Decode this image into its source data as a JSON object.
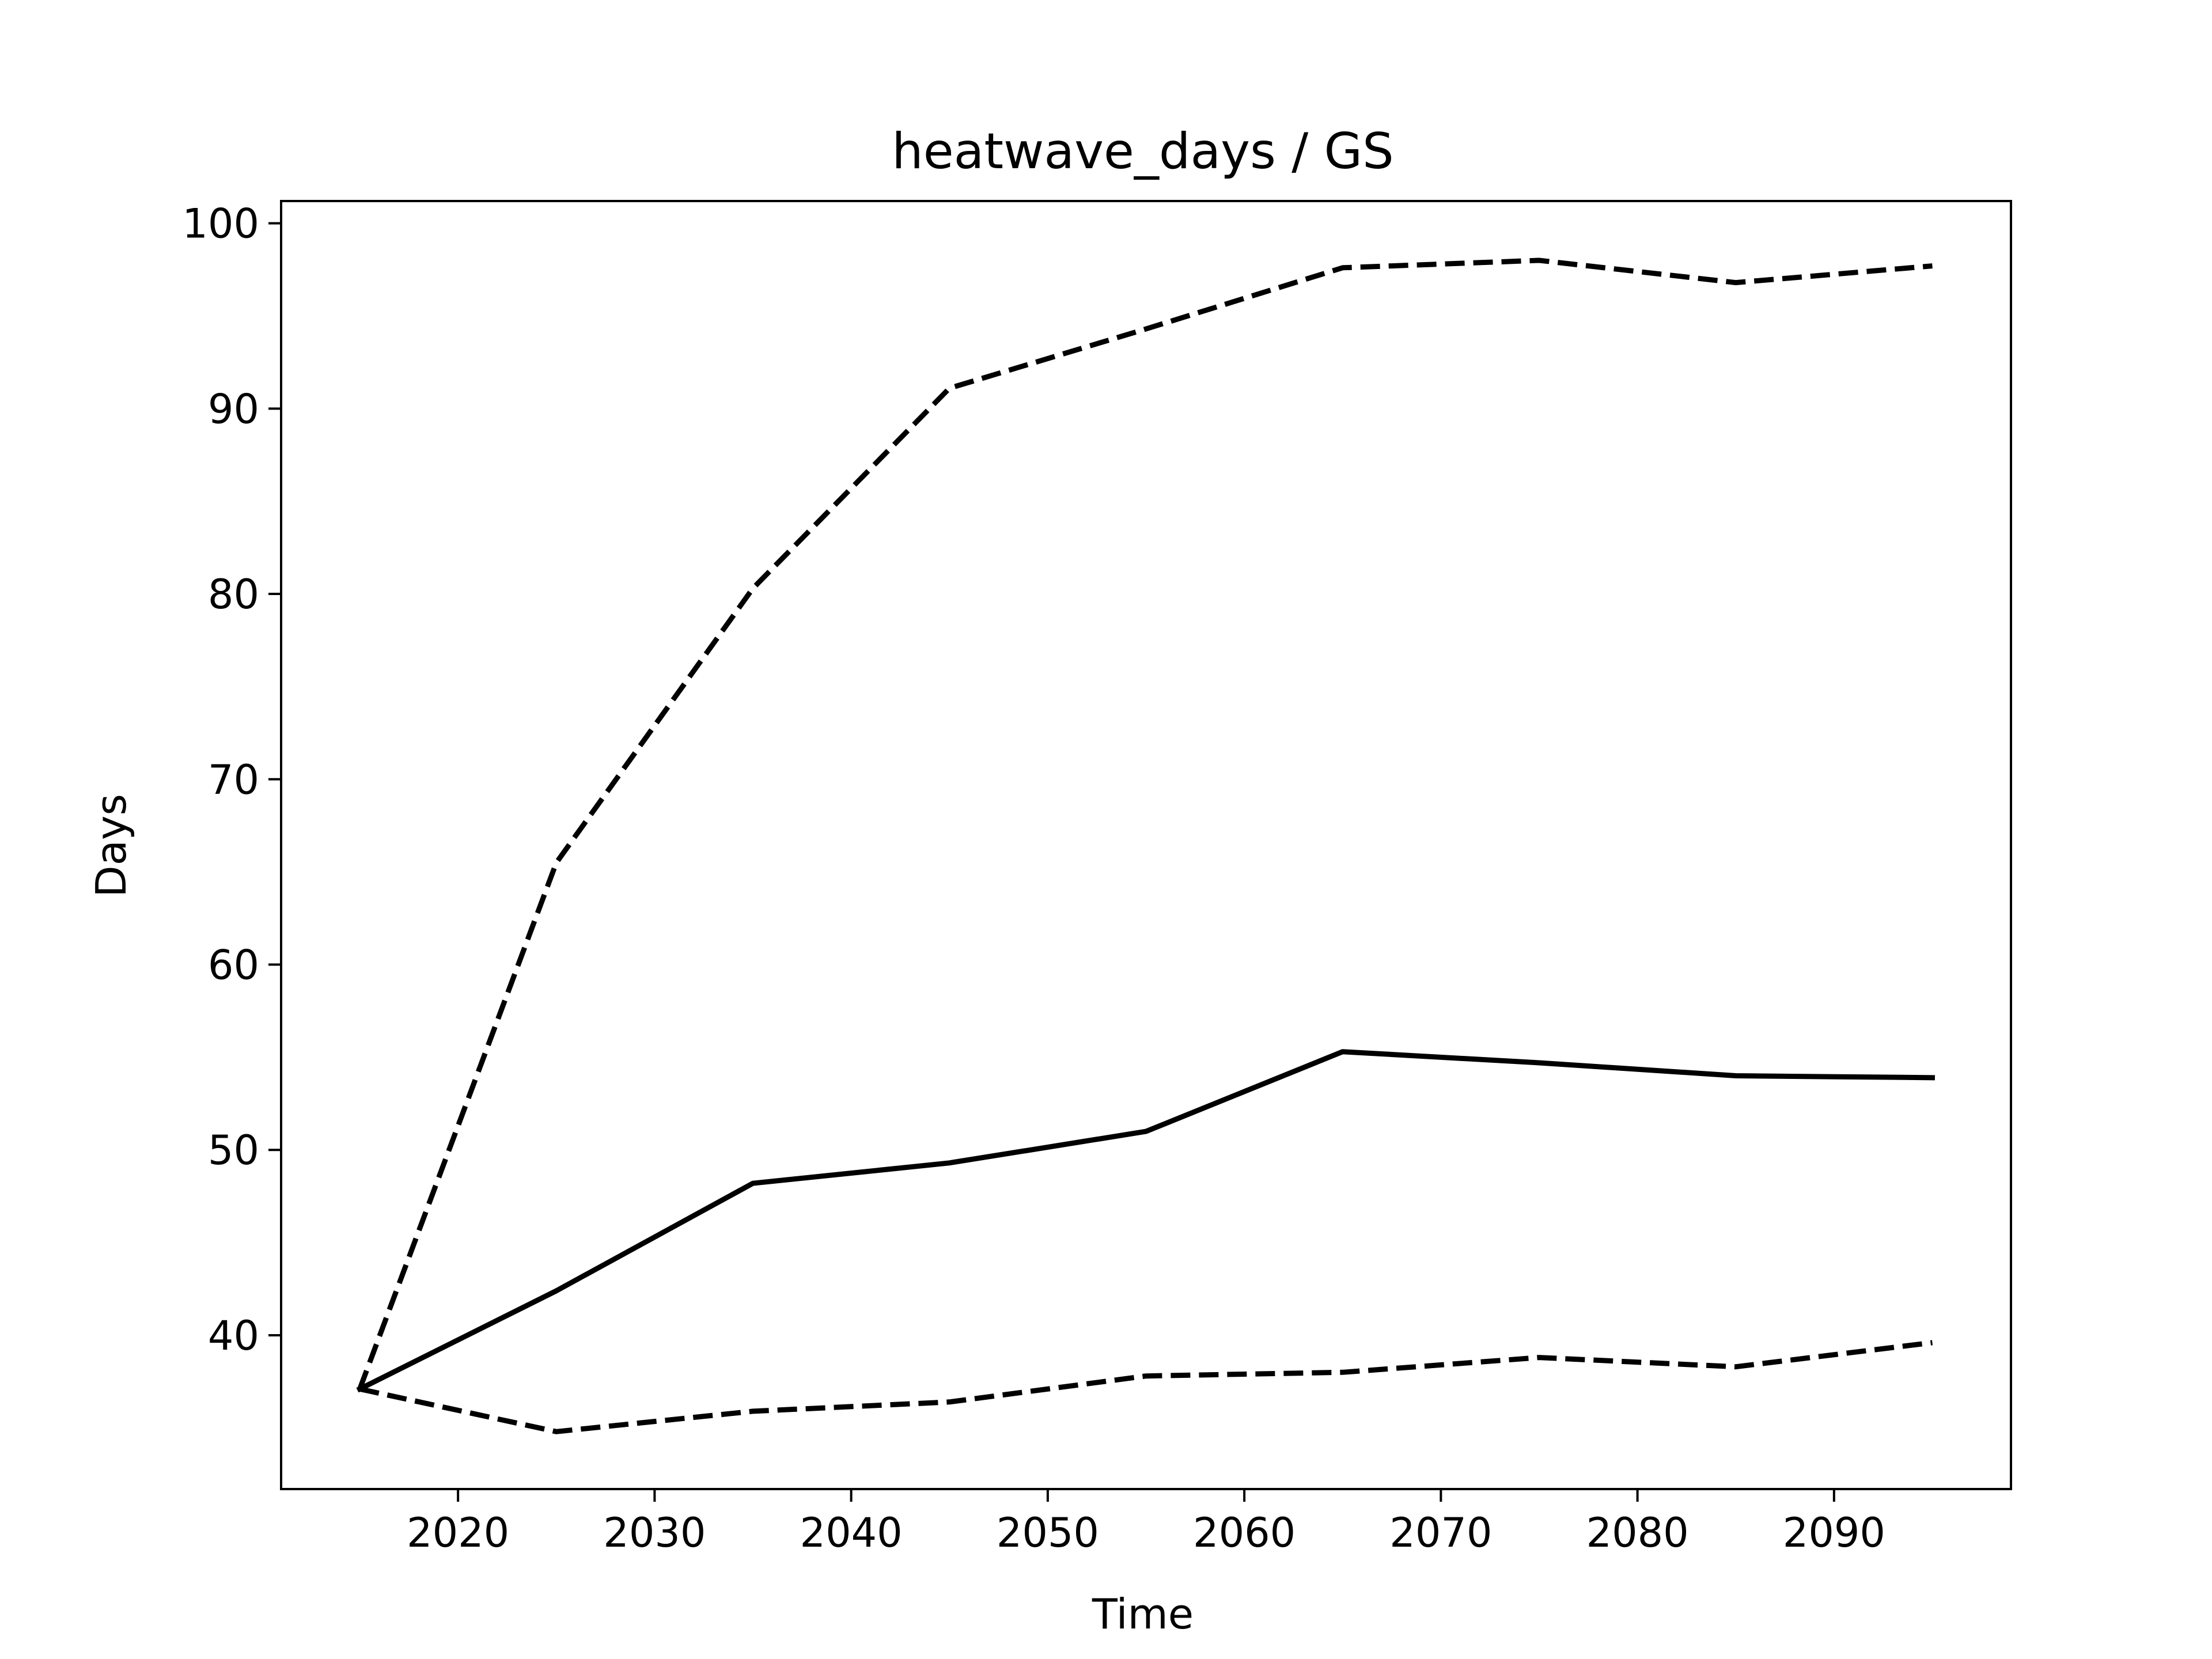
{
  "chart_data": {
    "type": "line",
    "title": "heatwave_days / GS",
    "xlabel": "Time",
    "ylabel": "Days",
    "xlim": [
      2011,
      2099
    ],
    "ylim": [
      31.7,
      101.2
    ],
    "grid": false,
    "x": [
      2015,
      2025,
      2035,
      2045,
      2055,
      2065,
      2075,
      2085,
      2095
    ],
    "x_ticks": [
      2020,
      2030,
      2040,
      2050,
      2060,
      2070,
      2080,
      2090
    ],
    "y_ticks": [
      40,
      50,
      60,
      70,
      80,
      90,
      100
    ],
    "series": [
      {
        "style": "solid",
        "color": "#000000",
        "values": [
          37.1,
          42.4,
          48.2,
          49.3,
          51.0,
          55.3,
          54.7,
          54.0,
          53.9
        ]
      },
      {
        "style": "dashed",
        "color": "#000000",
        "values": [
          37.1,
          65.5,
          80.3,
          91.1,
          94.3,
          97.6,
          98.0,
          96.8,
          97.7
        ]
      },
      {
        "style": "dashed",
        "color": "#000000",
        "values": [
          37.1,
          34.8,
          35.9,
          36.4,
          37.8,
          38.0,
          38.8,
          38.3,
          39.6
        ]
      }
    ]
  }
}
